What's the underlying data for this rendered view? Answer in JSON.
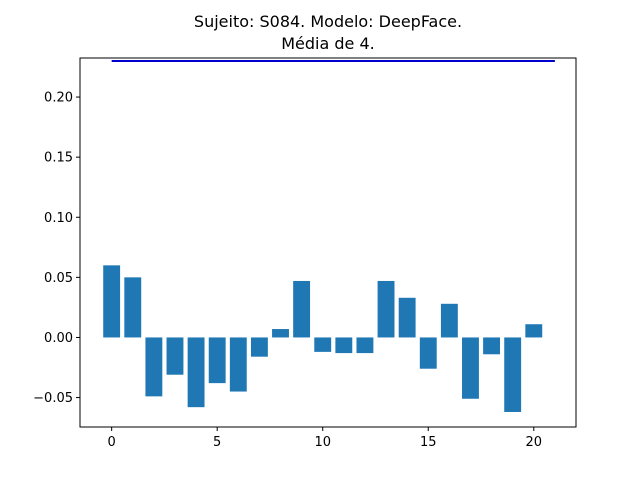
{
  "chart_data": {
    "type": "bar",
    "title_line1": "Sujeito: S084. Modelo: DeepFace.",
    "title_line2": "Média de 4.",
    "xlabel": "",
    "ylabel": "",
    "xlim": [
      -1.5,
      22.0
    ],
    "ylim": [
      -0.0745,
      0.2325
    ],
    "x": [
      0,
      1,
      2,
      3,
      4,
      5,
      6,
      7,
      8,
      9,
      10,
      11,
      12,
      13,
      14,
      15,
      16,
      17,
      18,
      19,
      20
    ],
    "values": [
      0.06,
      0.05,
      -0.049,
      -0.031,
      -0.058,
      -0.038,
      -0.045,
      -0.016,
      0.007,
      0.047,
      -0.012,
      -0.013,
      -0.013,
      0.047,
      0.033,
      -0.026,
      0.028,
      -0.051,
      -0.014,
      -0.062,
      0.011
    ],
    "bar_width": 0.8,
    "bar_color": "#1f77b4",
    "xticks": [
      0,
      5,
      10,
      15,
      20
    ],
    "yticks": [
      -0.05,
      0.0,
      0.05,
      0.1,
      0.15,
      0.2
    ],
    "ytick_labels": [
      "−0.05",
      "0.00",
      "0.05",
      "0.10",
      "0.15",
      "0.20"
    ],
    "reference_line": {
      "value": 0.23,
      "x_from": 0,
      "x_to": 21,
      "color": "#0000cd"
    },
    "grid": false,
    "legend": "none"
  }
}
